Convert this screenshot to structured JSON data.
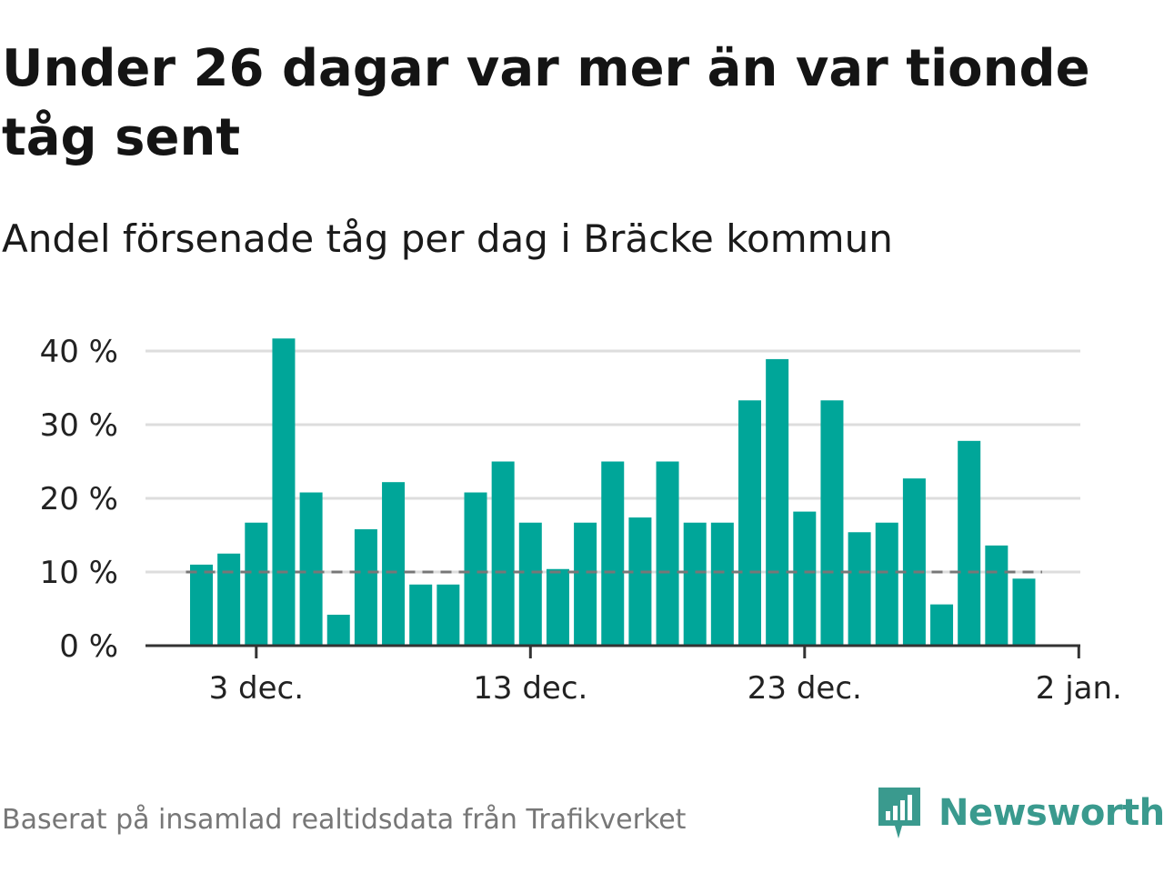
{
  "title": "Under 26 dagar var mer än var tionde tåg sent",
  "subtitle": "Andel försenade tåg per dag i Bräcke kommun",
  "footer": "Baserat på insamlad realtidsdata från Trafikverket",
  "logo": {
    "text": "Newsworthy",
    "icon": "newsworthy-chart-icon",
    "color": "#3a9a8e"
  },
  "colors": {
    "bar": "#00a699",
    "grid": "#dddddd",
    "axis": "#333333",
    "reference": "#777777",
    "tick_label": "#222222"
  },
  "chart_data": {
    "type": "bar",
    "x": [
      "2023-12-01",
      "2023-12-02",
      "2023-12-03",
      "2023-12-04",
      "2023-12-05",
      "2023-12-06",
      "2023-12-07",
      "2023-12-08",
      "2023-12-09",
      "2023-12-10",
      "2023-12-11",
      "2023-12-12",
      "2023-12-13",
      "2023-12-14",
      "2023-12-15",
      "2023-12-16",
      "2023-12-17",
      "2023-12-18",
      "2023-12-19",
      "2023-12-20",
      "2023-12-21",
      "2023-12-22",
      "2023-12-23",
      "2023-12-24",
      "2023-12-25",
      "2023-12-26",
      "2023-12-27",
      "2023-12-28",
      "2023-12-29",
      "2023-12-30",
      "2023-12-31"
    ],
    "values": [
      11,
      12.5,
      16.7,
      41.7,
      20.8,
      4.2,
      15.8,
      22.2,
      8.3,
      8.3,
      20.8,
      25,
      16.7,
      10.4,
      16.7,
      25,
      17.4,
      25,
      16.7,
      16.7,
      33.3,
      38.9,
      18.2,
      33.3,
      15.4,
      16.7,
      22.7,
      5.6,
      27.8,
      13.6,
      9.1
    ],
    "unit": "%",
    "ylim": [
      0,
      40
    ],
    "yticks": [
      "0 %",
      "10 %",
      "20 %",
      "30 %",
      "40 %"
    ],
    "ytick_values": [
      0,
      10,
      20,
      30,
      40
    ],
    "xticks": [
      "3 dec.",
      "13 dec.",
      "23 dec.",
      "2 jan."
    ],
    "xtick_dates": [
      "2023-12-03",
      "2023-12-13",
      "2023-12-23",
      "2024-01-02"
    ],
    "reference_line": 10,
    "grid": true
  }
}
